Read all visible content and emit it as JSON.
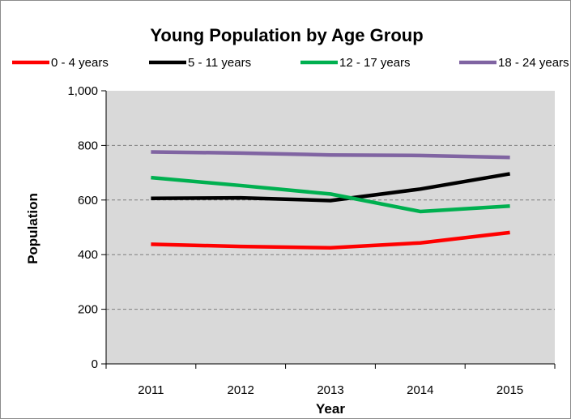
{
  "chart_data": {
    "type": "line",
    "title": "Young Population by Age Group",
    "xlabel": "Year",
    "ylabel": "Population",
    "categories": [
      "2011",
      "2012",
      "2013",
      "2014",
      "2015"
    ],
    "ylim": [
      0,
      1000
    ],
    "yticks": [
      0,
      200,
      400,
      600,
      800,
      1000
    ],
    "ytick_labels": [
      "0",
      "200",
      "400",
      "600",
      "800",
      "1,000"
    ],
    "grid": true,
    "legend_position": "top",
    "plot_background": "#d9d9d9",
    "series": [
      {
        "name": "0 - 4 years",
        "color": "#ff0000",
        "values": [
          438,
          430,
          425,
          443,
          481
        ]
      },
      {
        "name": "5 - 11 years",
        "color": "#000000",
        "values": [
          606,
          608,
          598,
          640,
          696
        ]
      },
      {
        "name": "12 - 17 years",
        "color": "#00b050",
        "values": [
          682,
          653,
          622,
          558,
          578
        ]
      },
      {
        "name": "18 - 24 years",
        "color": "#8064a2",
        "values": [
          776,
          772,
          765,
          763,
          756
        ]
      }
    ]
  }
}
